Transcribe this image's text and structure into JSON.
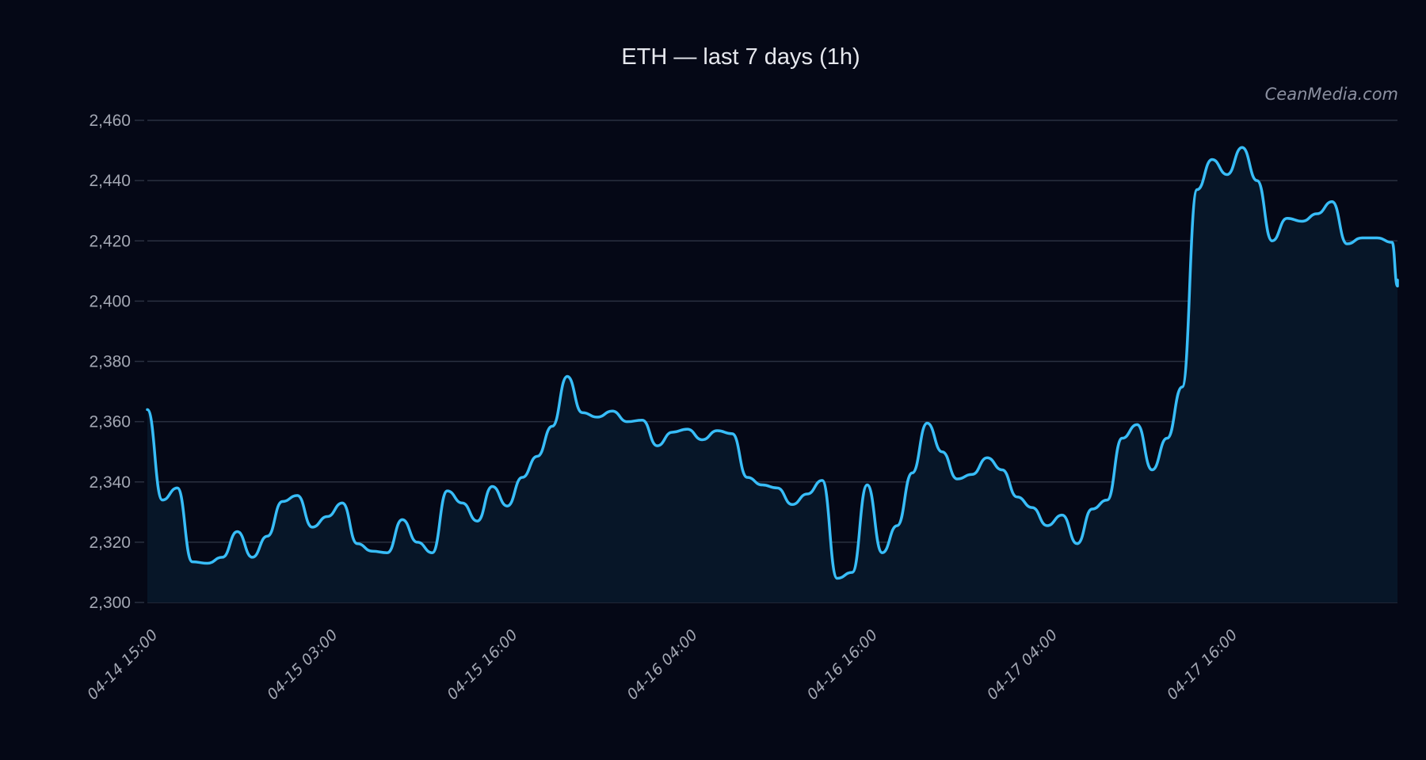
{
  "header": {
    "title": "ETH — last 7 days (1h)",
    "watermark": "CeanMedia.com"
  },
  "colors": {
    "background": "#050816",
    "line": "#38bdf8",
    "area_fill": "#071628",
    "grid": "#2a3040",
    "tick_text": "#a3a7b3",
    "title_text": "#e6e8ee"
  },
  "chart_data": {
    "type": "line",
    "title": "ETH — last 7 days (1h)",
    "xlabel": "",
    "ylabel": "",
    "ylim": [
      2300,
      2460
    ],
    "yticks": [
      2300,
      2320,
      2340,
      2360,
      2380,
      2400,
      2420,
      2440,
      2460
    ],
    "ytick_labels": [
      "2,300",
      "2,320",
      "2,340",
      "2,360",
      "2,380",
      "2,400",
      "2,420",
      "2,440",
      "2,460"
    ],
    "xtick_labels": [
      "04-14 15:00",
      "04-15 03:00",
      "04-15 16:00",
      "04-16 04:00",
      "04-16 16:00",
      "04-17 04:00",
      "04-17 16:00"
    ],
    "xtick_indices": [
      0,
      12,
      24,
      36,
      48,
      60,
      72
    ],
    "grid": true,
    "legend": null,
    "area_under_line": true,
    "series": [
      {
        "name": "ETH",
        "values": [
          2364,
          2334,
          2338,
          2313.5,
          2313,
          2315,
          2323.5,
          2315,
          2322,
          2333.5,
          2335.5,
          2325,
          2328.5,
          2333,
          2319.5,
          2317,
          2316.5,
          2327.5,
          2320,
          2316.5,
          2337,
          2333,
          2327,
          2338.5,
          2332,
          2341.5,
          2348.5,
          2358.5,
          2375,
          2363,
          2361.5,
          2363.5,
          2360,
          2360.5,
          2352,
          2356.5,
          2357.5,
          2354,
          2357,
          2356,
          2341.5,
          2339,
          2338,
          2332.5,
          2336,
          2340.5,
          2308,
          2310,
          2339,
          2316.5,
          2325.5,
          2343,
          2359.5,
          2350,
          2341,
          2342.5,
          2348,
          2344,
          2335,
          2331.5,
          2325.5,
          2329,
          2319.5,
          2331,
          2334,
          2354.5,
          2359,
          2344,
          2354.5,
          2371.5,
          2437,
          2447,
          2442,
          2451,
          2440,
          2420,
          2427.5,
          2426.5,
          2429,
          2433,
          2419,
          2421,
          2421,
          2419.5,
          2405,
          2407
        ]
      }
    ]
  }
}
